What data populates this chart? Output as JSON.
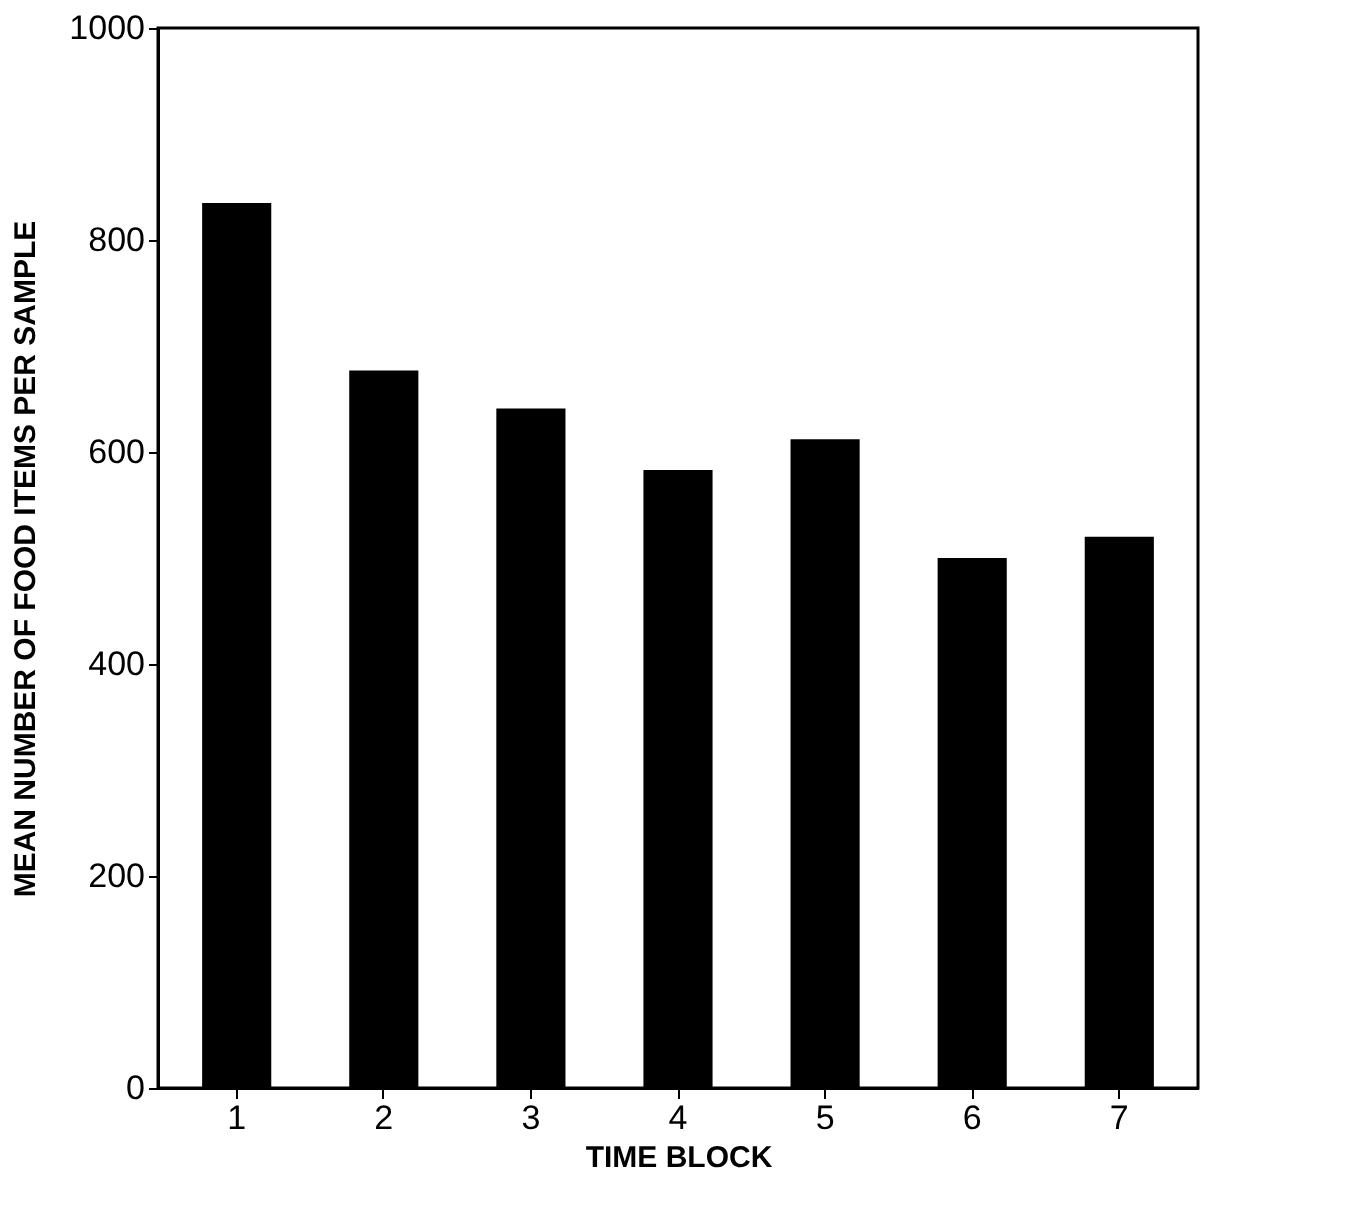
{
  "chart_data": {
    "type": "bar",
    "xlabel": "TIME BLOCK",
    "ylabel": "MEAN NUMBER OF FOOD ITEMS PER SAMPLE",
    "categories": [
      "1",
      "2",
      "3",
      "4",
      "5",
      "6",
      "7"
    ],
    "values": [
      835,
      677,
      641,
      583,
      612,
      500,
      520
    ],
    "color": "#000000",
    "ylim": [
      0,
      1000
    ],
    "yticks": [
      0,
      200,
      400,
      600,
      800,
      1000
    ],
    "grid": false
  }
}
